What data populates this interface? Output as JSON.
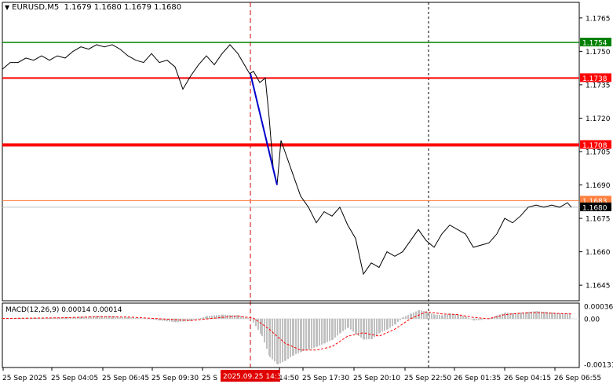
{
  "header": {
    "symbol": "EURUSD,M5",
    "ohlc": "1.1679 1.1680 1.1679 1.1680"
  },
  "macd": {
    "label": "MACD(12,26,9) 0.00014 0.00014",
    "ticks": [
      "0.00036",
      "0.00",
      "-0.00131"
    ]
  },
  "price_axis": {
    "ticks": [
      "1.1765",
      "1.1750",
      "1.1735",
      "1.1720",
      "1.1705",
      "1.1690",
      "1.1675",
      "1.1660",
      "1.1645"
    ]
  },
  "time_axis": {
    "ticks": [
      "25 Sep 2025",
      "25 Sep 04:05",
      "25 Sep 06:45",
      "25 Sep 09:30",
      "25 S",
      "14:50",
      "25 Sep 17:30",
      "25 Sep 20:10",
      "25 Sep 22:50",
      "26 Sep 01:35",
      "26 Sep 04:15",
      "26 Sep 06:55"
    ],
    "highlight": "2025.09.25 14:30"
  },
  "colors": {
    "resistance": "#ff0000",
    "upper_level": "#008000",
    "entry_level": "#ff7f3f",
    "trend": "#0000cc",
    "histogram": "#c0c0c0",
    "signal": "#ff0000",
    "price": "#000000"
  },
  "chart_data": {
    "type": "line",
    "ylim": [
      1.1638,
      1.1772
    ],
    "price_line": [
      [
        0,
        1.1742
      ],
      [
        10,
        1.1745
      ],
      [
        20,
        1.1745
      ],
      [
        30,
        1.1747
      ],
      [
        40,
        1.1746
      ],
      [
        50,
        1.1748
      ],
      [
        60,
        1.1746
      ],
      [
        70,
        1.1748
      ],
      [
        80,
        1.1747
      ],
      [
        90,
        1.175
      ],
      [
        100,
        1.1752
      ],
      [
        110,
        1.1751
      ],
      [
        120,
        1.1753
      ],
      [
        130,
        1.1752
      ],
      [
        140,
        1.1753
      ],
      [
        150,
        1.1751
      ],
      [
        160,
        1.1748
      ],
      [
        170,
        1.1746
      ],
      [
        180,
        1.1745
      ],
      [
        190,
        1.1749
      ],
      [
        200,
        1.1745
      ],
      [
        210,
        1.1746
      ],
      [
        220,
        1.1743
      ],
      [
        230,
        1.1733
      ],
      [
        240,
        1.1739
      ],
      [
        250,
        1.1744
      ],
      [
        260,
        1.1748
      ],
      [
        270,
        1.1744
      ],
      [
        280,
        1.1749
      ],
      [
        290,
        1.1753
      ],
      [
        300,
        1.1749
      ],
      [
        310,
        1.1743
      ],
      [
        315,
        1.174
      ],
      [
        320,
        1.1741
      ],
      [
        328,
        1.1736
      ],
      [
        335,
        1.1738
      ],
      [
        340,
        1.172
      ],
      [
        345,
        1.1698
      ],
      [
        350,
        1.169
      ],
      [
        355,
        1.171
      ],
      [
        360,
        1.1705
      ],
      [
        370,
        1.1695
      ],
      [
        380,
        1.1685
      ],
      [
        390,
        1.168
      ],
      [
        400,
        1.1673
      ],
      [
        410,
        1.1678
      ],
      [
        420,
        1.1676
      ],
      [
        430,
        1.168
      ],
      [
        440,
        1.1672
      ],
      [
        450,
        1.1666
      ],
      [
        460,
        1.165
      ],
      [
        470,
        1.1655
      ],
      [
        480,
        1.1653
      ],
      [
        490,
        1.166
      ],
      [
        500,
        1.1658
      ],
      [
        510,
        1.166
      ],
      [
        520,
        1.1665
      ],
      [
        530,
        1.167
      ],
      [
        540,
        1.1665
      ],
      [
        550,
        1.1662
      ],
      [
        560,
        1.1668
      ],
      [
        570,
        1.1672
      ],
      [
        580,
        1.167
      ],
      [
        590,
        1.1668
      ],
      [
        600,
        1.1662
      ],
      [
        610,
        1.1663
      ],
      [
        620,
        1.1664
      ],
      [
        630,
        1.1668
      ],
      [
        640,
        1.1675
      ],
      [
        650,
        1.1673
      ],
      [
        660,
        1.1676
      ],
      [
        670,
        1.168
      ],
      [
        680,
        1.1681
      ],
      [
        690,
        1.168
      ],
      [
        700,
        1.1681
      ],
      [
        710,
        1.168
      ],
      [
        720,
        1.1682
      ],
      [
        725,
        1.168
      ]
    ],
    "levels": [
      {
        "value": 1.1754,
        "label": "1.1754",
        "role": "upper"
      },
      {
        "value": 1.1738,
        "label": "1.1738",
        "role": "resistance"
      },
      {
        "value": 1.1708,
        "label": "1.1708",
        "role": "resistance_bold"
      },
      {
        "value": 1.1683,
        "label": "1.1683",
        "role": "entry"
      },
      {
        "value": 1.168,
        "label": "1.1680",
        "role": "current"
      }
    ],
    "trend_line": [
      [
        316,
        1.174
      ],
      [
        350,
        1.169
      ]
    ],
    "vlines": {
      "signal_time": 316,
      "session": 543
    },
    "macd_hist": [
      [
        0,
        0.0
      ],
      [
        20,
        2e-05
      ],
      [
        40,
        3e-05
      ],
      [
        60,
        2e-05
      ],
      [
        80,
        4e-05
      ],
      [
        100,
        6e-05
      ],
      [
        120,
        8e-05
      ],
      [
        140,
        7e-05
      ],
      [
        160,
        4e-05
      ],
      [
        180,
        1e-05
      ],
      [
        200,
        -5e-05
      ],
      [
        220,
        -0.0001
      ],
      [
        240,
        -6e-05
      ],
      [
        260,
        8e-05
      ],
      [
        280,
        0.00012
      ],
      [
        300,
        0.0001
      ],
      [
        316,
        0.0
      ],
      [
        330,
        -0.0005
      ],
      [
        340,
        -0.0011
      ],
      [
        350,
        -0.00131
      ],
      [
        360,
        -0.0012
      ],
      [
        370,
        -0.00105
      ],
      [
        380,
        -0.00095
      ],
      [
        390,
        -0.00088
      ],
      [
        400,
        -0.0008
      ],
      [
        410,
        -0.0007
      ],
      [
        420,
        -0.0006
      ],
      [
        430,
        -0.0004
      ],
      [
        440,
        -0.00025
      ],
      [
        450,
        -0.00045
      ],
      [
        460,
        -0.0006
      ],
      [
        470,
        -0.00058
      ],
      [
        480,
        -0.0004
      ],
      [
        490,
        -0.0003
      ],
      [
        500,
        -0.00015
      ],
      [
        510,
        5e-05
      ],
      [
        520,
        0.00015
      ],
      [
        530,
        0.00025
      ],
      [
        540,
        0.0002
      ],
      [
        550,
        0.00012
      ],
      [
        560,
        0.0001
      ],
      [
        570,
        0.00015
      ],
      [
        580,
        0.00012
      ],
      [
        590,
        6e-05
      ],
      [
        600,
        -5e-05
      ],
      [
        610,
        -3e-05
      ],
      [
        620,
        2e-05
      ],
      [
        630,
        0.0001
      ],
      [
        640,
        0.00018
      ],
      [
        650,
        0.00016
      ],
      [
        660,
        0.00018
      ],
      [
        670,
        0.0002
      ],
      [
        680,
        0.00022
      ],
      [
        690,
        0.0002
      ],
      [
        700,
        0.00018
      ],
      [
        710,
        0.00016
      ],
      [
        725,
        0.00014
      ]
    ],
    "macd_signal": [
      [
        0,
        1e-05
      ],
      [
        40,
        2e-05
      ],
      [
        80,
        3e-05
      ],
      [
        120,
        6e-05
      ],
      [
        160,
        5e-05
      ],
      [
        200,
        0.0
      ],
      [
        240,
        -5e-05
      ],
      [
        280,
        4e-05
      ],
      [
        300,
        8e-05
      ],
      [
        320,
        2e-05
      ],
      [
        340,
        -0.0003
      ],
      [
        360,
        -0.0007
      ],
      [
        380,
        -0.0009
      ],
      [
        400,
        -0.0009
      ],
      [
        420,
        -0.0008
      ],
      [
        440,
        -0.0005
      ],
      [
        460,
        -0.0004
      ],
      [
        480,
        -0.0005
      ],
      [
        500,
        -0.0003
      ],
      [
        520,
        0.0
      ],
      [
        540,
        0.0002
      ],
      [
        560,
        0.00014
      ],
      [
        580,
        0.00012
      ],
      [
        600,
        4e-05
      ],
      [
        620,
        0.0
      ],
      [
        640,
        0.00012
      ],
      [
        660,
        0.00016
      ],
      [
        680,
        0.00018
      ],
      [
        700,
        0.00016
      ],
      [
        725,
        0.00014
      ]
    ],
    "macd_ylim": [
      -0.0014,
      0.00045
    ]
  }
}
